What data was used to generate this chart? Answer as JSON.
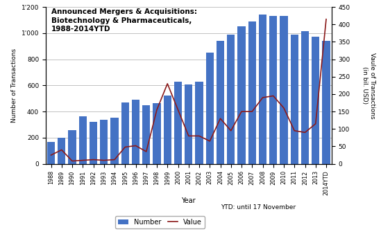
{
  "years": [
    "1988",
    "1989",
    "1990",
    "1991",
    "1992",
    "1993",
    "1994",
    "1995",
    "1996",
    "1997",
    "1998",
    "1999",
    "2000",
    "2001",
    "2002",
    "2003",
    "2004",
    "2005",
    "2006",
    "2007",
    "2008",
    "2009",
    "2010",
    "2011",
    "2012",
    "2013",
    "2014YTD"
  ],
  "number": [
    165,
    200,
    255,
    365,
    320,
    335,
    355,
    470,
    490,
    450,
    465,
    525,
    630,
    605,
    630,
    850,
    940,
    990,
    1050,
    1090,
    1140,
    1130,
    1130,
    990,
    1015,
    975,
    940
  ],
  "value": [
    25,
    40,
    8,
    10,
    12,
    10,
    12,
    48,
    52,
    35,
    155,
    230,
    155,
    80,
    80,
    65,
    130,
    95,
    150,
    150,
    190,
    195,
    160,
    95,
    90,
    115,
    415
  ],
  "bar_color": "#4472C4",
  "line_color": "#8B1A1A",
  "title_line1": "Announced Mergers & Acquisitions:",
  "title_line2": "Biotechnology & Pharmaceuticals,",
  "title_line3": "1988-2014YTD",
  "ylabel_left": "Number of Transactions",
  "ylabel_right": "Vaule of Transactions\n(in bil. USD)",
  "xlabel": "Year",
  "ytd_note": "YTD: until 17 November",
  "legend_number": "Number",
  "legend_value": "Value",
  "ylim_left": [
    0,
    1200
  ],
  "ylim_right": [
    0,
    450
  ],
  "yticks_left": [
    0,
    200,
    400,
    600,
    800,
    1000,
    1200
  ],
  "ytick_labels_left": [
    "0",
    "200",
    "400",
    "600",
    "800",
    "1'000",
    "1'200"
  ],
  "yticks_right": [
    0,
    50,
    100,
    150,
    200,
    250,
    300,
    350,
    400,
    450
  ],
  "background_color": "#FFFFFF",
  "grid_color": "#AAAAAA"
}
